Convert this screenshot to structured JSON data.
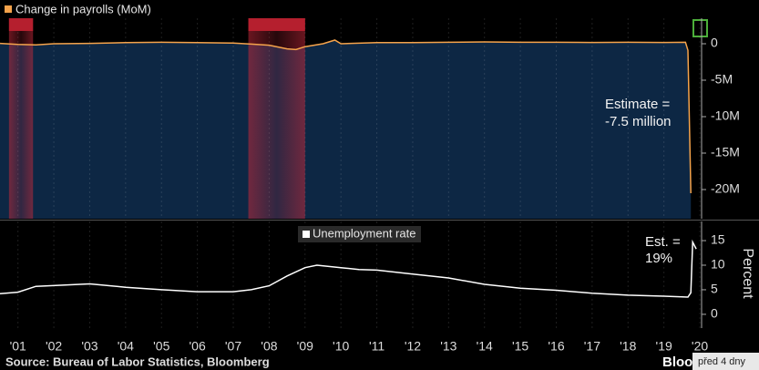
{
  "chart_data": [
    {
      "type": "area",
      "series": [
        {
          "name": "Change in payrolls (MoM)",
          "color": "#f5a34b",
          "fill": "#0d2744",
          "x": [
            2001.0,
            2001.5,
            2002.0,
            2002.5,
            2003.5,
            2004.5,
            2005.5,
            2006.5,
            2007.5,
            2008.0,
            2008.5,
            2009.0,
            2009.25,
            2009.5,
            2010.0,
            2010.33,
            2010.5,
            2011.5,
            2012.5,
            2013.5,
            2014.5,
            2015.5,
            2016.5,
            2017.5,
            2018.5,
            2019.5,
            2020.1,
            2020.17,
            2020.25
          ],
          "values": [
            0.05,
            -0.1,
            -0.15,
            0.0,
            0.05,
            0.15,
            0.2,
            0.15,
            0.1,
            -0.05,
            -0.2,
            -0.7,
            -0.8,
            -0.4,
            0,
            0.5,
            0,
            0.15,
            0.15,
            0.2,
            0.25,
            0.2,
            0.2,
            0.18,
            0.2,
            0.17,
            0.2,
            -0.9,
            -20.5
          ]
        }
      ],
      "xlim": [
        2001.0,
        2020.55
      ],
      "xticks": [
        2001.5,
        2002.5,
        2003.5,
        2004.5,
        2005.5,
        2006.5,
        2007.5,
        2008.5,
        2009.5,
        2010.5,
        2011.5,
        2012.5,
        2013.5,
        2014.5,
        2015.5,
        2016.5,
        2017.5,
        2018.5,
        2019.5,
        2020.5
      ],
      "ylim": [
        -24,
        3.5
      ],
      "yticks": [
        0,
        {
          "value": -5,
          "label": "-5M"
        },
        {
          "value": -10,
          "label": "-10M"
        },
        {
          "value": -15,
          "label": "-15M"
        },
        {
          "value": -20,
          "label": "-20M"
        }
      ],
      "recessions": [
        [
          2001.25,
          2001.92
        ],
        [
          2007.92,
          2009.5
        ]
      ],
      "annotation": [
        "Estimate =",
        "-7.5 million"
      ]
    },
    {
      "type": "line",
      "series": [
        {
          "name": "Unemployment rate",
          "color": "#ffffff",
          "x": [
            2001.0,
            2001.5,
            2002.0,
            2003.5,
            2004.5,
            2005.5,
            2006.5,
            2007.5,
            2008.0,
            2008.5,
            2009.0,
            2009.5,
            2009.83,
            2010.5,
            2011.0,
            2011.5,
            2012.5,
            2013.5,
            2014.5,
            2015.5,
            2016.5,
            2017.5,
            2018.5,
            2019.5,
            2020.17,
            2020.25,
            2020.3,
            2020.4
          ],
          "values": [
            4.2,
            4.5,
            5.7,
            6.2,
            5.5,
            5.0,
            4.6,
            4.6,
            5.0,
            5.8,
            7.8,
            9.5,
            10.0,
            9.5,
            9.1,
            9.0,
            8.2,
            7.4,
            6.1,
            5.3,
            4.9,
            4.3,
            3.9,
            3.7,
            3.5,
            4.4,
            14.7,
            13.3
          ]
        }
      ],
      "xlim": [
        2001.0,
        2020.55
      ],
      "xticks": [
        {
          "value": 2001.5,
          "label": "'01"
        },
        {
          "value": 2002.5,
          "label": "'02"
        },
        {
          "value": 2003.5,
          "label": "'03"
        },
        {
          "value": 2004.5,
          "label": "'04"
        },
        {
          "value": 2005.5,
          "label": "'05"
        },
        {
          "value": 2006.5,
          "label": "'06"
        },
        {
          "value": 2007.5,
          "label": "'07"
        },
        {
          "value": 2008.5,
          "label": "'08"
        },
        {
          "value": 2009.5,
          "label": "'09"
        },
        {
          "value": 2010.5,
          "label": "'10"
        },
        {
          "value": 2011.5,
          "label": "'11"
        },
        {
          "value": 2012.5,
          "label": "'12"
        },
        {
          "value": 2013.5,
          "label": "'13"
        },
        {
          "value": 2014.5,
          "label": "'14"
        },
        {
          "value": 2015.5,
          "label": "'15"
        },
        {
          "value": 2016.5,
          "label": "'16"
        },
        {
          "value": 2017.5,
          "label": "'17"
        },
        {
          "value": 2018.5,
          "label": "'18"
        },
        {
          "value": 2019.5,
          "label": "'19"
        },
        {
          "value": 2020.5,
          "label": "'20"
        }
      ],
      "ylim": [
        -2.8,
        18.9
      ],
      "yticks": [
        0,
        5,
        10,
        15
      ],
      "y_label": "Percent",
      "annotation": [
        "Est. =",
        "19%"
      ]
    }
  ],
  "source": "Source: Bureau of Labor Statistics, Bloomberg",
  "logo": "Bloom",
  "timestamp": "před 4 dny"
}
